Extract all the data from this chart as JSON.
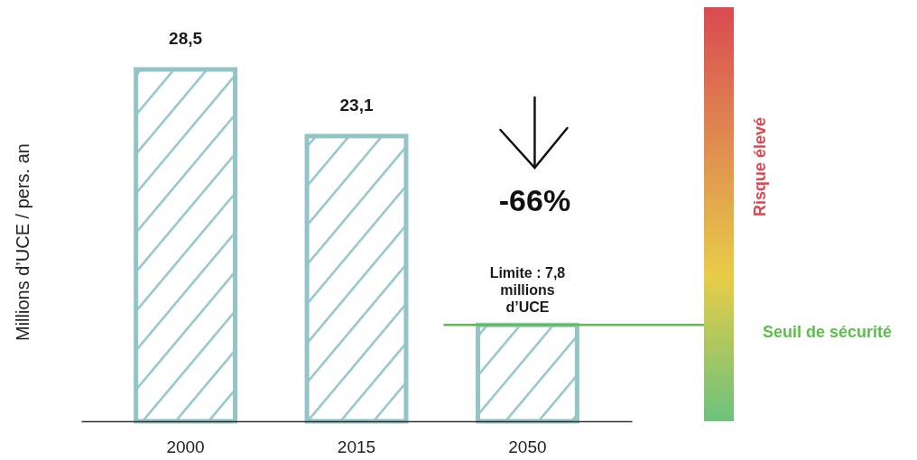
{
  "chart_data": {
    "type": "bar",
    "ylabel": "Millions d’UCE / pers. an",
    "categories": [
      "2000",
      "2015",
      "2050"
    ],
    "values": [
      28.5,
      23.1,
      7.8
    ],
    "value_labels": [
      "28,5",
      "23,1",
      null
    ],
    "color": "#93c4c8",
    "tick_labels": "x",
    "ref_lines": [
      {
        "axis": "y",
        "value": 7.8,
        "label": "Seuil de sécurité",
        "color": "#5cbf4c"
      }
    ],
    "annotations": [
      "-66%",
      {
        "text": "Limite : 7,8 millions d’UCE",
        "x": "2050",
        "y": 7.8
      },
      "Risque élevé"
    ]
  }
}
